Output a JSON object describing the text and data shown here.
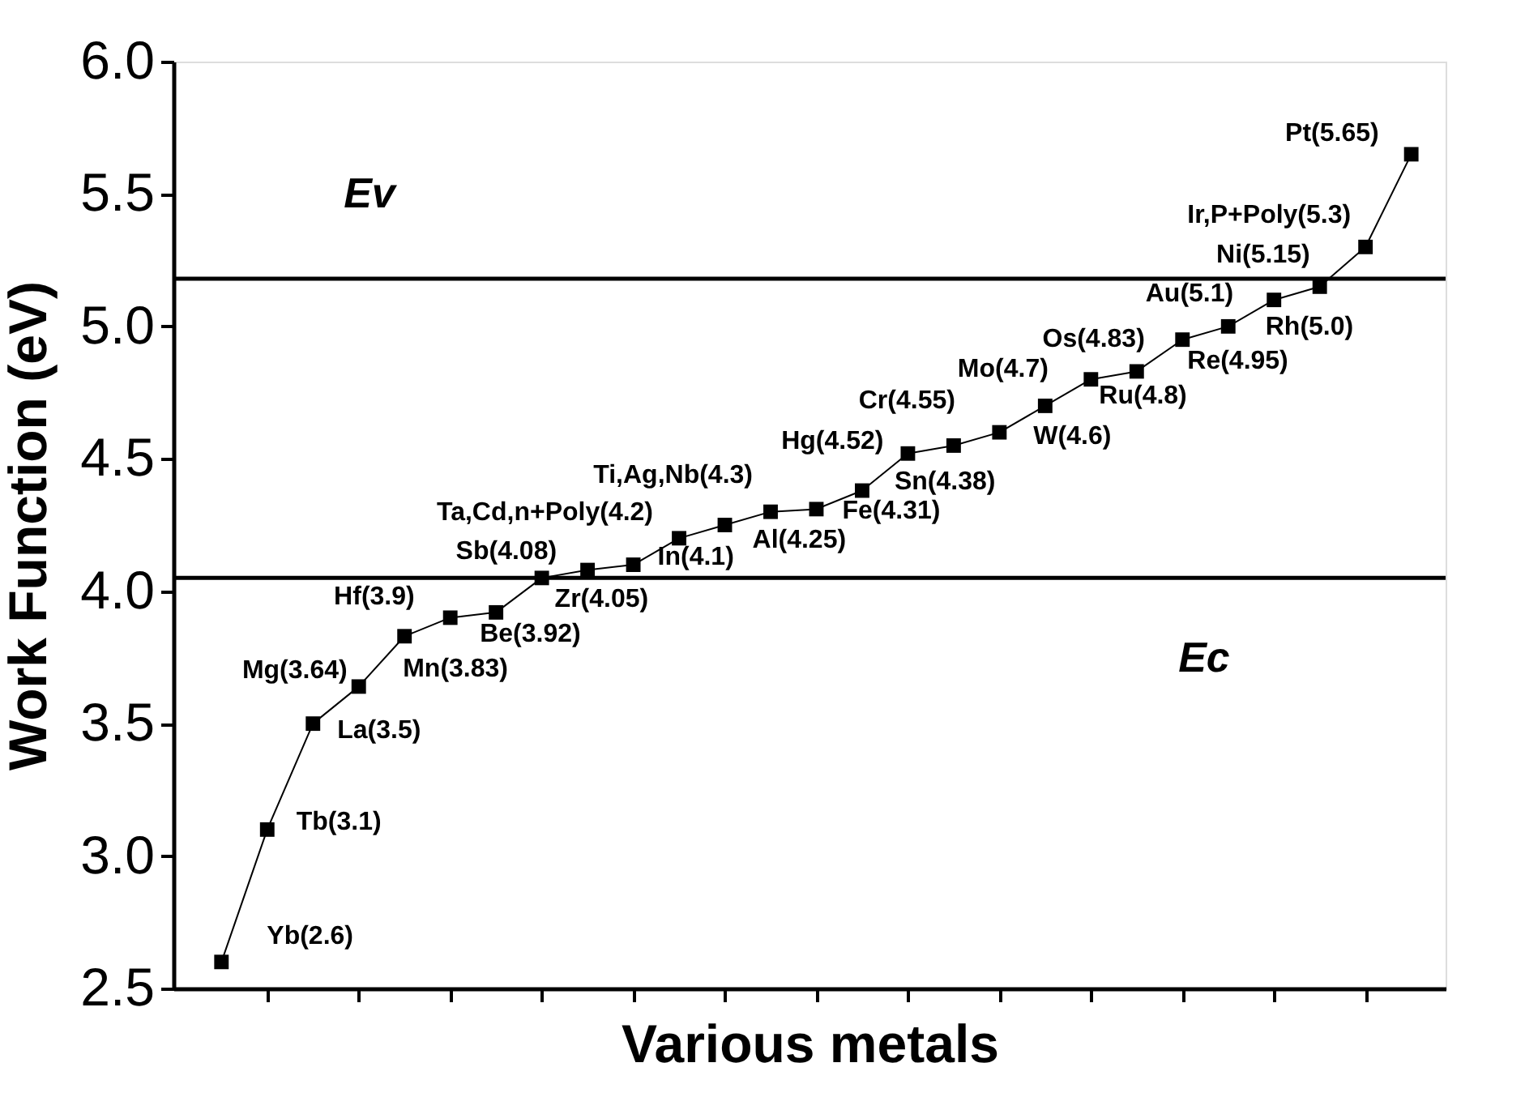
{
  "chart_data": {
    "type": "line",
    "xlabel": "Various metals",
    "ylabel": "Work Function (eV)",
    "categories": [
      null,
      null,
      null,
      null,
      null,
      null,
      null,
      null,
      null,
      null,
      null,
      null,
      null,
      null,
      null,
      null,
      null,
      null,
      null,
      null,
      null,
      null,
      null,
      null,
      null,
      null,
      null
    ],
    "values": [
      2.6,
      3.1,
      3.5,
      3.64,
      3.83,
      3.9,
      3.92,
      4.05,
      4.08,
      4.1,
      4.2,
      4.25,
      4.3,
      4.31,
      4.38,
      4.52,
      4.55,
      4.6,
      4.7,
      4.8,
      4.83,
      4.95,
      5.0,
      5.1,
      5.15,
      5.3,
      5.65
    ],
    "value_labels": [
      "Yb(2.6)",
      "Tb(3.1)",
      "La(3.5)",
      "Mg(3.64)",
      "Mn(3.83)",
      "Hf(3.9)",
      "Be(3.92)",
      "Zr(4.05)",
      "Sb(4.08)",
      "In(4.1)",
      "Ta,Cd,n+Poly(4.2)",
      "Al(4.25)",
      "Ti,Ag,Nb(4.3)",
      "Fe(4.31)",
      "Sn(4.38)",
      "Hg(4.52)",
      "Cr(4.55)",
      "W(4.6)",
      "Mo(4.7)",
      "Ru(4.8)",
      "Os(4.83)",
      "Re(4.95)",
      "Rh(5.0)",
      "Au(5.1)",
      "Ni(5.15)",
      "Ir,P+Poly(5.3)",
      "Pt(5.65)"
    ],
    "color": "#000000",
    "marker": "square",
    "line_style": "solid",
    "grid": false,
    "ylim": [
      2.5,
      6.0
    ],
    "yticks": [
      {
        "value": 2.5,
        "label": "2.5"
      },
      {
        "value": 3.0,
        "label": "3.0"
      },
      {
        "value": 3.5,
        "label": "3.5"
      },
      {
        "value": 4.0,
        "label": "4.0"
      },
      {
        "value": 4.5,
        "label": "4.5"
      },
      {
        "value": 5.0,
        "label": "5.0"
      },
      {
        "value": 5.5,
        "label": "5.5"
      },
      {
        "value": 6.0,
        "label": "6.0"
      }
    ],
    "ref_lines": [
      {
        "axis": "y",
        "value": 5.18,
        "label": "Ev",
        "color": "#000000"
      },
      {
        "axis": "y",
        "value": 4.05,
        "label": "Ec",
        "color": "#000000"
      }
    ]
  }
}
